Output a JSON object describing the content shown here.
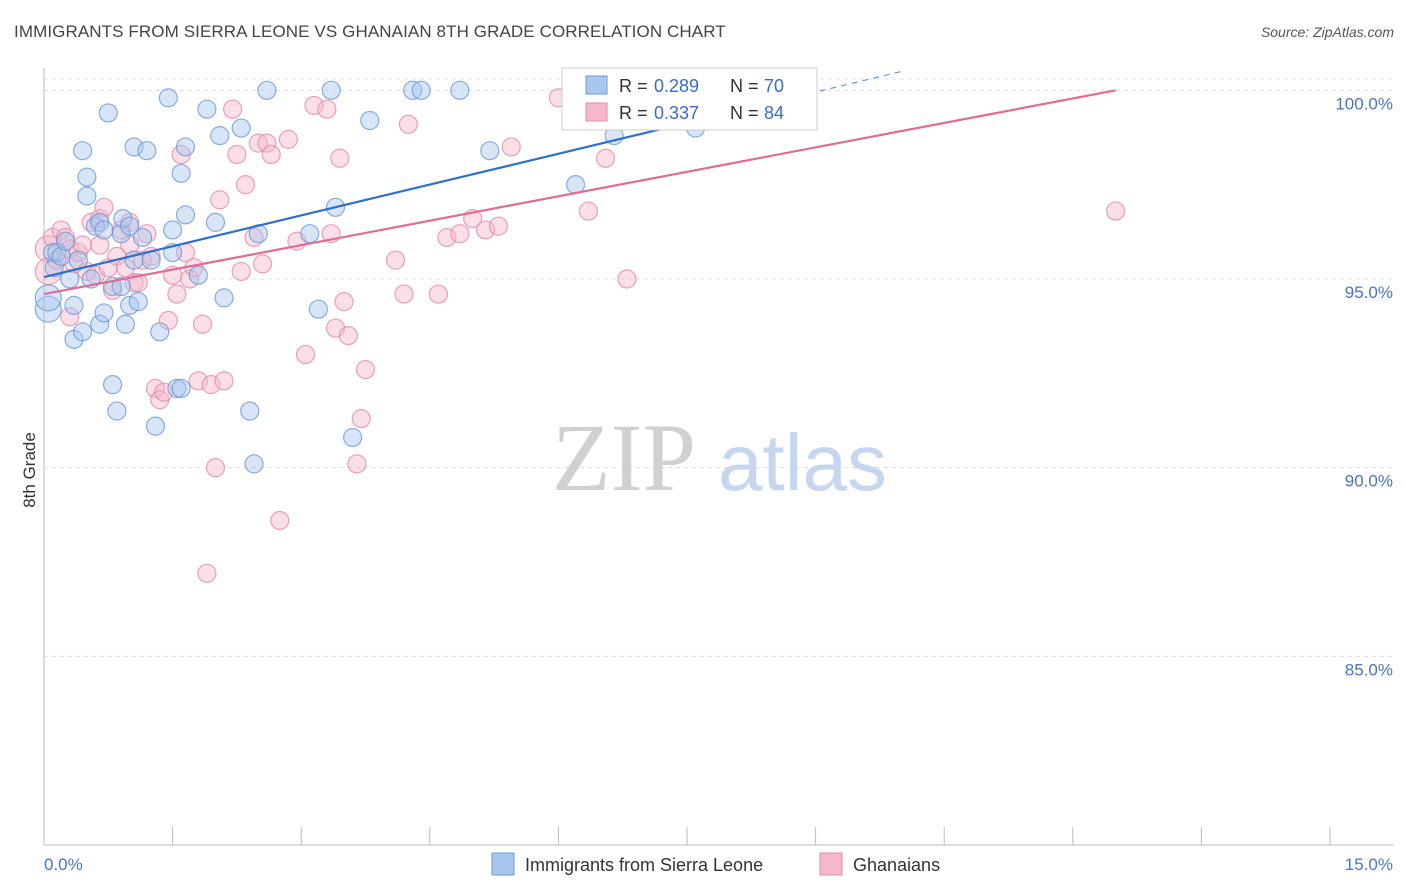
{
  "title": "IMMIGRANTS FROM SIERRA LEONE VS GHANAIAN 8TH GRADE CORRELATION CHART",
  "source": "Source: ZipAtlas.com",
  "watermark": {
    "zip": "ZIP",
    "atlas": "atlas"
  },
  "colors": {
    "blue_fill": "#a9c6ee",
    "blue_stroke": "#6d9ad6",
    "blue_line": "#2f6fcc",
    "pink_fill": "#f5b7cb",
    "pink_stroke": "#e58aa8",
    "pink_line": "#e06b95",
    "tick_text": "#4a74c4",
    "grid": "#dddddd"
  },
  "legend": {
    "rows": [
      {
        "r_label": "R = ",
        "r_value": "0.289",
        "n_label": "N = ",
        "n_value": "70",
        "series": "blue"
      },
      {
        "r_label": "R = ",
        "r_value": "0.337",
        "n_label": "N = ",
        "n_value": "84",
        "series": "pink"
      }
    ]
  },
  "chart_data": {
    "type": "scatter",
    "title": "IMMIGRANTS FROM SIERRA LEONE VS GHANAIAN 8TH GRADE CORRELATION CHART",
    "xlabel": "",
    "ylabel": "8th Grade",
    "xlim": [
      0,
      15
    ],
    "ylim": [
      80,
      100.3
    ],
    "x_tick_labels": [
      "0.0%",
      "15.0%"
    ],
    "y_ticks": [
      85,
      90,
      95,
      100
    ],
    "y_tick_labels": [
      "85.0%",
      "90.0%",
      "95.0%",
      "100.0%"
    ],
    "grid": true,
    "series": [
      {
        "name": "Immigrants from Sierra Leone",
        "color": "blue",
        "R": 0.289,
        "N": 70,
        "trend": {
          "x0": 0,
          "y0": 95.05,
          "x1": 7.8,
          "y1": 99.3,
          "dash_to_x": 10.0
        },
        "points": [
          [
            0.05,
            94.2
          ],
          [
            0.05,
            94.5
          ],
          [
            0.1,
            95.7
          ],
          [
            0.12,
            95.3
          ],
          [
            0.15,
            95.7
          ],
          [
            0.2,
            95.6
          ],
          [
            0.25,
            96.0
          ],
          [
            0.3,
            95.0
          ],
          [
            0.35,
            94.3
          ],
          [
            0.35,
            93.4
          ],
          [
            0.4,
            95.5
          ],
          [
            0.45,
            93.6
          ],
          [
            0.45,
            98.4
          ],
          [
            0.5,
            97.7
          ],
          [
            0.5,
            97.2
          ],
          [
            0.55,
            95.0
          ],
          [
            0.6,
            96.4
          ],
          [
            0.65,
            96.5
          ],
          [
            0.65,
            93.8
          ],
          [
            0.7,
            94.1
          ],
          [
            0.7,
            96.3
          ],
          [
            0.75,
            99.4
          ],
          [
            0.8,
            94.8
          ],
          [
            0.8,
            92.2
          ],
          [
            0.85,
            91.5
          ],
          [
            0.9,
            96.2
          ],
          [
            0.9,
            94.8
          ],
          [
            0.92,
            96.6
          ],
          [
            0.95,
            93.8
          ],
          [
            1.0,
            96.4
          ],
          [
            1.0,
            94.3
          ],
          [
            1.05,
            95.5
          ],
          [
            1.05,
            98.5
          ],
          [
            1.1,
            94.4
          ],
          [
            1.15,
            96.1
          ],
          [
            1.2,
            98.4
          ],
          [
            1.25,
            95.5
          ],
          [
            1.3,
            91.1
          ],
          [
            1.35,
            93.6
          ],
          [
            1.45,
            99.8
          ],
          [
            1.5,
            95.7
          ],
          [
            1.5,
            96.3
          ],
          [
            1.55,
            92.1
          ],
          [
            1.6,
            97.8
          ],
          [
            1.6,
            92.1
          ],
          [
            1.65,
            96.7
          ],
          [
            1.65,
            98.5
          ],
          [
            1.8,
            95.1
          ],
          [
            1.9,
            99.5
          ],
          [
            2.0,
            96.5
          ],
          [
            2.05,
            98.8
          ],
          [
            2.1,
            94.5
          ],
          [
            2.3,
            99.0
          ],
          [
            2.4,
            91.5
          ],
          [
            2.45,
            90.1
          ],
          [
            2.5,
            96.2
          ],
          [
            2.6,
            100.0
          ],
          [
            3.1,
            96.2
          ],
          [
            3.2,
            94.2
          ],
          [
            3.35,
            100.0
          ],
          [
            3.4,
            96.9
          ],
          [
            3.6,
            90.8
          ],
          [
            3.8,
            99.2
          ],
          [
            4.3,
            100.0
          ],
          [
            4.4,
            100.0
          ],
          [
            4.85,
            100.0
          ],
          [
            5.2,
            98.4
          ],
          [
            6.2,
            97.5
          ],
          [
            6.65,
            98.8
          ],
          [
            7.6,
            99.0
          ]
        ]
      },
      {
        "name": "Ghanaians",
        "color": "pink",
        "R": 0.337,
        "N": 84,
        "trend": {
          "x0": 0,
          "y0": 94.6,
          "x1": 12.5,
          "y1": 100.0
        },
        "points": [
          [
            0.05,
            95.8
          ],
          [
            0.05,
            95.2
          ],
          [
            0.1,
            96.1
          ],
          [
            0.15,
            95.5
          ],
          [
            0.2,
            96.3
          ],
          [
            0.25,
            96.1
          ],
          [
            0.3,
            95.8
          ],
          [
            0.3,
            94.0
          ],
          [
            0.35,
            95.4
          ],
          [
            0.4,
            95.7
          ],
          [
            0.45,
            95.9
          ],
          [
            0.5,
            95.2
          ],
          [
            0.55,
            96.5
          ],
          [
            0.6,
            95.1
          ],
          [
            0.65,
            96.6
          ],
          [
            0.65,
            95.9
          ],
          [
            0.7,
            96.9
          ],
          [
            0.75,
            95.3
          ],
          [
            0.8,
            94.7
          ],
          [
            0.85,
            95.6
          ],
          [
            0.9,
            96.3
          ],
          [
            0.95,
            95.3
          ],
          [
            1.0,
            96.5
          ],
          [
            1.0,
            95.9
          ],
          [
            1.05,
            94.9
          ],
          [
            1.1,
            94.9
          ],
          [
            1.15,
            95.5
          ],
          [
            1.2,
            96.2
          ],
          [
            1.25,
            95.6
          ],
          [
            1.3,
            92.1
          ],
          [
            1.35,
            91.8
          ],
          [
            1.4,
            92.0
          ],
          [
            1.45,
            93.9
          ],
          [
            1.5,
            95.1
          ],
          [
            1.55,
            94.6
          ],
          [
            1.6,
            98.3
          ],
          [
            1.65,
            95.7
          ],
          [
            1.7,
            95.0
          ],
          [
            1.75,
            95.3
          ],
          [
            1.8,
            92.3
          ],
          [
            1.85,
            93.8
          ],
          [
            1.9,
            87.2
          ],
          [
            1.95,
            92.2
          ],
          [
            2.0,
            90.0
          ],
          [
            2.05,
            97.1
          ],
          [
            2.1,
            92.3
          ],
          [
            2.2,
            99.5
          ],
          [
            2.25,
            98.3
          ],
          [
            2.3,
            95.2
          ],
          [
            2.35,
            97.5
          ],
          [
            2.45,
            96.1
          ],
          [
            2.5,
            98.6
          ],
          [
            2.55,
            95.4
          ],
          [
            2.6,
            98.6
          ],
          [
            2.65,
            98.3
          ],
          [
            2.75,
            88.6
          ],
          [
            2.85,
            98.7
          ],
          [
            2.95,
            96.0
          ],
          [
            3.05,
            93.0
          ],
          [
            3.15,
            99.6
          ],
          [
            3.3,
            99.5
          ],
          [
            3.35,
            96.2
          ],
          [
            3.4,
            93.7
          ],
          [
            3.45,
            98.2
          ],
          [
            3.5,
            94.4
          ],
          [
            3.55,
            93.5
          ],
          [
            3.65,
            90.1
          ],
          [
            3.7,
            91.3
          ],
          [
            3.75,
            92.6
          ],
          [
            4.1,
            95.5
          ],
          [
            4.2,
            94.6
          ],
          [
            4.25,
            99.1
          ],
          [
            4.6,
            94.6
          ],
          [
            4.7,
            96.1
          ],
          [
            4.85,
            96.2
          ],
          [
            5.0,
            96.6
          ],
          [
            5.15,
            96.3
          ],
          [
            5.3,
            96.4
          ],
          [
            5.45,
            98.5
          ],
          [
            6.0,
            99.8
          ],
          [
            6.35,
            96.8
          ],
          [
            6.55,
            98.2
          ],
          [
            6.8,
            95.0
          ],
          [
            12.5,
            96.8
          ]
        ]
      }
    ]
  }
}
